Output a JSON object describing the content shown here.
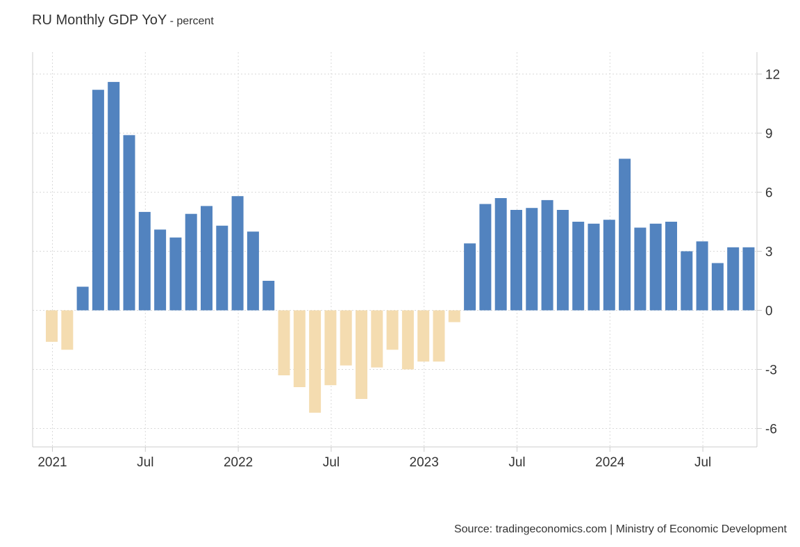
{
  "colors": {
    "positive": "#5283bf",
    "negative": "#f4dcb0",
    "grid": "#d9d9d9",
    "axis": "#cccccc"
  },
  "chart_data": {
    "type": "bar",
    "title": "RU Monthly GDP YoY",
    "subtitle": "- percent",
    "source": "Source: tradingeconomics.com | Ministry of Economic Development",
    "ylabel": "percent",
    "ylim": [
      -7,
      13
    ],
    "yticks": [
      12,
      9,
      6,
      3,
      0,
      -3,
      -6
    ],
    "xtick_labels": [
      {
        "label": "2021",
        "index": 0
      },
      {
        "label": "Jul",
        "index": 6
      },
      {
        "label": "2022",
        "index": 12
      },
      {
        "label": "Jul",
        "index": 18
      },
      {
        "label": "2023",
        "index": 24
      },
      {
        "label": "Jul",
        "index": 30
      },
      {
        "label": "2024",
        "index": 36
      },
      {
        "label": "Jul",
        "index": 42
      }
    ],
    "categories": [
      "2021-01",
      "2021-02",
      "2021-03",
      "2021-04",
      "2021-05",
      "2021-06",
      "2021-07",
      "2021-08",
      "2021-09",
      "2021-10",
      "2021-11",
      "2021-12",
      "2022-01",
      "2022-02",
      "2022-03",
      "2022-04",
      "2022-05",
      "2022-06",
      "2022-07",
      "2022-08",
      "2022-09",
      "2022-10",
      "2022-11",
      "2022-12",
      "2023-01",
      "2023-02",
      "2023-03",
      "2023-04",
      "2023-05",
      "2023-06",
      "2023-07",
      "2023-08",
      "2023-09",
      "2023-10",
      "2023-11",
      "2023-12",
      "2024-01",
      "2024-02",
      "2024-03",
      "2024-04",
      "2024-05",
      "2024-06",
      "2024-07",
      "2024-08",
      "2024-09",
      "2024-10"
    ],
    "values": [
      -1.6,
      -2.0,
      1.2,
      11.2,
      11.6,
      8.9,
      5.0,
      4.1,
      3.7,
      4.9,
      5.3,
      4.3,
      5.8,
      4.0,
      1.5,
      -3.3,
      -3.9,
      -5.2,
      -3.8,
      -2.8,
      -4.5,
      -2.9,
      -2.0,
      -3.0,
      -2.6,
      -2.6,
      -0.6,
      3.4,
      5.4,
      5.7,
      5.1,
      5.2,
      5.6,
      5.1,
      4.5,
      4.4,
      4.6,
      7.7,
      4.2,
      4.4,
      4.5,
      3.0,
      3.5,
      2.4,
      3.2,
      3.2
    ]
  }
}
